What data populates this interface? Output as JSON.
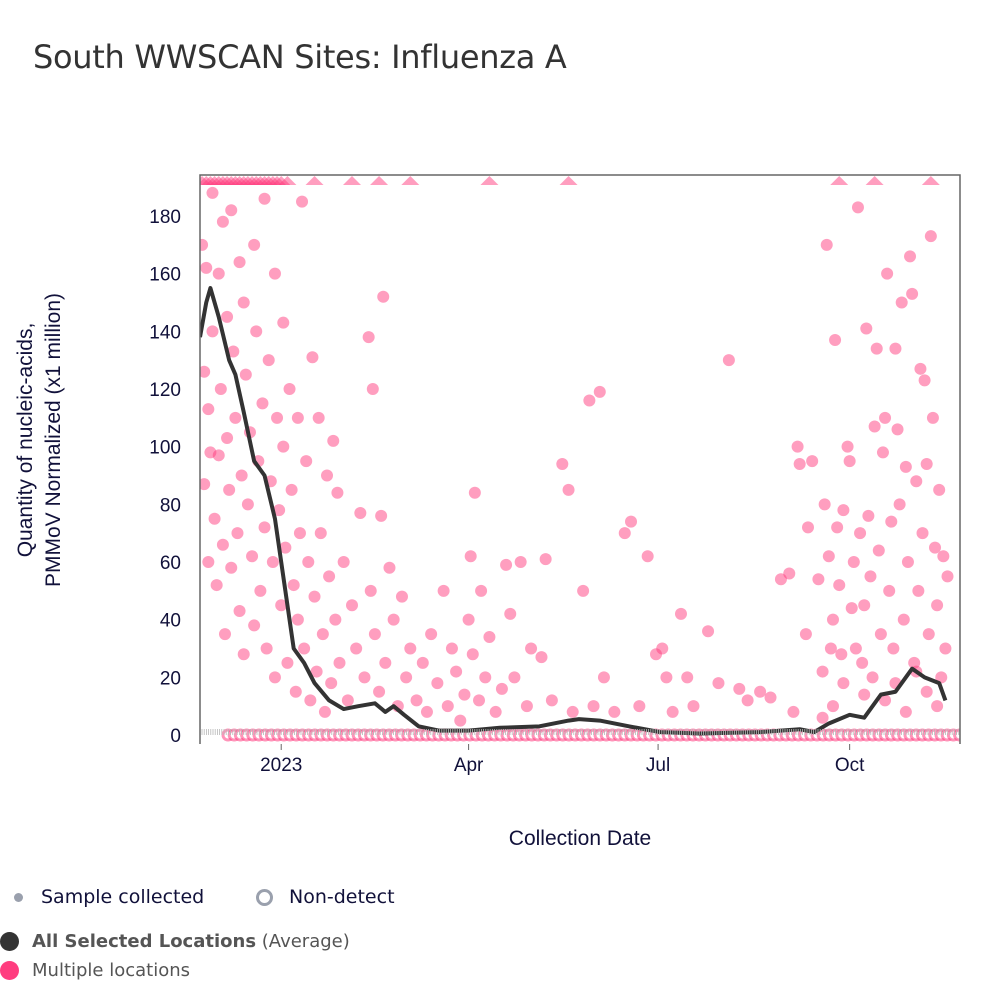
{
  "title": "South WWSCAN Sites: Influenza A",
  "legend": {
    "sample_collected": "Sample collected",
    "non_detect": "Non-detect",
    "average_bold": "All Selected Locations",
    "average_suffix": "(Average)",
    "multiple": "Multiple locations"
  },
  "colors": {
    "points": "#ff3d7f",
    "average": "#333333",
    "sample": "#9aa0ad"
  },
  "chart_data": {
    "type": "scatter",
    "title": "South WWSCAN Sites: Influenza A",
    "xlabel": "Collection Date",
    "ylabel_lines": [
      "Quantity of nucleic-acids,",
      "PMMoV Normalized (x1 million)"
    ],
    "x_unit": "days since 2023-01-01",
    "xlim": [
      -39,
      326
    ],
    "ylim": [
      0,
      194
    ],
    "x_ticks": [
      {
        "day": 0,
        "label": "2023"
      },
      {
        "day": 90,
        "label": "Apr"
      },
      {
        "day": 181,
        "label": "Jul"
      },
      {
        "day": 273,
        "label": "Oct"
      }
    ],
    "y_ticks": [
      0,
      20,
      40,
      60,
      80,
      100,
      120,
      140,
      160,
      180
    ],
    "average_series": {
      "name": "All Selected Locations (Average)",
      "points": [
        [
          -39,
          138
        ],
        [
          -36,
          150
        ],
        [
          -34,
          155
        ],
        [
          -30,
          145
        ],
        [
          -25,
          130
        ],
        [
          -22,
          125
        ],
        [
          -18,
          112
        ],
        [
          -13,
          95
        ],
        [
          -8,
          90
        ],
        [
          -3,
          75
        ],
        [
          1,
          55
        ],
        [
          6,
          30
        ],
        [
          11,
          25
        ],
        [
          16,
          18
        ],
        [
          23,
          12
        ],
        [
          30,
          9
        ],
        [
          37,
          10
        ],
        [
          45,
          11
        ],
        [
          50,
          8
        ],
        [
          54,
          10
        ],
        [
          59,
          7
        ],
        [
          66,
          3
        ],
        [
          76,
          1.5
        ],
        [
          90,
          1.5
        ],
        [
          105,
          2.5
        ],
        [
          124,
          3
        ],
        [
          138,
          5
        ],
        [
          143,
          5.5
        ],
        [
          153,
          5
        ],
        [
          167,
          3
        ],
        [
          182,
          1
        ],
        [
          201,
          0.5
        ],
        [
          230,
          1
        ],
        [
          249,
          2
        ],
        [
          256,
          1
        ],
        [
          263,
          4
        ],
        [
          273,
          7
        ],
        [
          280,
          6
        ],
        [
          288,
          14
        ],
        [
          295,
          15
        ],
        [
          300,
          20
        ],
        [
          303,
          23
        ],
        [
          309,
          20
        ],
        [
          316,
          18
        ],
        [
          319,
          12
        ]
      ]
    },
    "above_range_days": [
      -38,
      -36,
      -34,
      -32,
      -30,
      -28,
      -26,
      -24,
      -22,
      -20,
      -18,
      -16,
      -14,
      -12,
      -10,
      -8,
      -6,
      -4,
      -2,
      0,
      3,
      16,
      34,
      47,
      62,
      100,
      138,
      268,
      285,
      312
    ],
    "scatter_series": {
      "name": "Multiple locations",
      "points": [
        [
          -38,
          170
        ],
        [
          -37,
          126
        ],
        [
          -37,
          87
        ],
        [
          -36,
          162
        ],
        [
          -35,
          113
        ],
        [
          -35,
          60
        ],
        [
          -34,
          98
        ],
        [
          -33,
          188
        ],
        [
          -33,
          140
        ],
        [
          -32,
          75
        ],
        [
          -31,
          52
        ],
        [
          -30,
          160
        ],
        [
          -30,
          97
        ],
        [
          -29,
          120
        ],
        [
          -28,
          178
        ],
        [
          -28,
          66
        ],
        [
          -27,
          35
        ],
        [
          -26,
          145
        ],
        [
          -26,
          103
        ],
        [
          -25,
          85
        ],
        [
          -24,
          182
        ],
        [
          -24,
          58
        ],
        [
          -23,
          133
        ],
        [
          -22,
          110
        ],
        [
          -21,
          70
        ],
        [
          -20,
          164
        ],
        [
          -20,
          43
        ],
        [
          -19,
          90
        ],
        [
          -18,
          150
        ],
        [
          -18,
          28
        ],
        [
          -17,
          125
        ],
        [
          -16,
          80
        ],
        [
          -15,
          105
        ],
        [
          -14,
          62
        ],
        [
          -13,
          170
        ],
        [
          -13,
          38
        ],
        [
          -12,
          140
        ],
        [
          -11,
          95
        ],
        [
          -10,
          50
        ],
        [
          -9,
          115
        ],
        [
          -8,
          186
        ],
        [
          -8,
          72
        ],
        [
          -7,
          30
        ],
        [
          -6,
          130
        ],
        [
          -5,
          88
        ],
        [
          -4,
          60
        ],
        [
          -3,
          160
        ],
        [
          -3,
          20
        ],
        [
          -2,
          110
        ],
        [
          -1,
          78
        ],
        [
          0,
          45
        ],
        [
          1,
          143
        ],
        [
          1,
          100
        ],
        [
          2,
          65
        ],
        [
          3,
          25
        ],
        [
          4,
          120
        ],
        [
          5,
          85
        ],
        [
          6,
          52
        ],
        [
          7,
          15
        ],
        [
          8,
          110
        ],
        [
          8,
          40
        ],
        [
          9,
          70
        ],
        [
          10,
          185
        ],
        [
          11,
          30
        ],
        [
          12,
          95
        ],
        [
          13,
          60
        ],
        [
          14,
          12
        ],
        [
          15,
          131
        ],
        [
          16,
          48
        ],
        [
          17,
          22
        ],
        [
          18,
          110
        ],
        [
          19,
          70
        ],
        [
          20,
          35
        ],
        [
          21,
          8
        ],
        [
          22,
          90
        ],
        [
          23,
          55
        ],
        [
          24,
          18
        ],
        [
          25,
          102
        ],
        [
          26,
          40
        ],
        [
          27,
          84
        ],
        [
          28,
          25
        ],
        [
          30,
          60
        ],
        [
          32,
          12
        ],
        [
          34,
          45
        ],
        [
          36,
          30
        ],
        [
          38,
          77
        ],
        [
          40,
          20
        ],
        [
          42,
          138
        ],
        [
          43,
          50
        ],
        [
          44,
          120
        ],
        [
          45,
          35
        ],
        [
          47,
          15
        ],
        [
          48,
          76
        ],
        [
          49,
          152
        ],
        [
          50,
          25
        ],
        [
          52,
          58
        ],
        [
          54,
          40
        ],
        [
          56,
          10
        ],
        [
          58,
          48
        ],
        [
          60,
          20
        ],
        [
          62,
          30
        ],
        [
          65,
          12
        ],
        [
          68,
          25
        ],
        [
          70,
          8
        ],
        [
          72,
          35
        ],
        [
          75,
          18
        ],
        [
          78,
          50
        ],
        [
          80,
          10
        ],
        [
          82,
          30
        ],
        [
          84,
          22
        ],
        [
          86,
          5
        ],
        [
          88,
          14
        ],
        [
          90,
          40
        ],
        [
          91,
          62
        ],
        [
          92,
          28
        ],
        [
          93,
          84
        ],
        [
          95,
          12
        ],
        [
          96,
          50
        ],
        [
          98,
          20
        ],
        [
          100,
          34
        ],
        [
          103,
          8
        ],
        [
          106,
          16
        ],
        [
          108,
          59
        ],
        [
          110,
          42
        ],
        [
          112,
          20
        ],
        [
          115,
          60
        ],
        [
          118,
          10
        ],
        [
          120,
          30
        ],
        [
          125,
          27
        ],
        [
          127,
          61
        ],
        [
          130,
          12
        ],
        [
          135,
          94
        ],
        [
          138,
          85
        ],
        [
          140,
          8
        ],
        [
          145,
          50
        ],
        [
          148,
          116
        ],
        [
          150,
          10
        ],
        [
          153,
          119
        ],
        [
          155,
          20
        ],
        [
          160,
          8
        ],
        [
          165,
          70
        ],
        [
          168,
          74
        ],
        [
          172,
          10
        ],
        [
          176,
          62
        ],
        [
          180,
          28
        ],
        [
          183,
          30
        ],
        [
          185,
          20
        ],
        [
          188,
          8
        ],
        [
          192,
          42
        ],
        [
          195,
          20
        ],
        [
          198,
          10
        ],
        [
          205,
          36
        ],
        [
          210,
          18
        ],
        [
          215,
          130
        ],
        [
          220,
          16
        ],
        [
          224,
          12
        ],
        [
          230,
          15
        ],
        [
          235,
          13
        ],
        [
          240,
          54
        ],
        [
          244,
          56
        ],
        [
          246,
          8
        ],
        [
          248,
          100
        ],
        [
          249,
          94
        ],
        [
          252,
          35
        ],
        [
          253,
          72
        ],
        [
          255,
          95
        ],
        [
          258,
          54
        ],
        [
          260,
          22
        ],
        [
          261,
          80
        ],
        [
          262,
          170
        ],
        [
          263,
          62
        ],
        [
          264,
          30
        ],
        [
          265,
          40
        ],
        [
          266,
          137
        ],
        [
          267,
          72
        ],
        [
          268,
          52
        ],
        [
          269,
          28
        ],
        [
          270,
          78
        ],
        [
          272,
          100
        ],
        [
          273,
          95
        ],
        [
          274,
          44
        ],
        [
          275,
          60
        ],
        [
          276,
          30
        ],
        [
          277,
          183
        ],
        [
          278,
          70
        ],
        [
          279,
          25
        ],
        [
          280,
          45
        ],
        [
          281,
          141
        ],
        [
          282,
          76
        ],
        [
          283,
          55
        ],
        [
          284,
          20
        ],
        [
          285,
          107
        ],
        [
          286,
          134
        ],
        [
          287,
          64
        ],
        [
          288,
          35
        ],
        [
          289,
          98
        ],
        [
          290,
          110
        ],
        [
          291,
          160
        ],
        [
          292,
          50
        ],
        [
          293,
          74
        ],
        [
          294,
          30
        ],
        [
          295,
          134
        ],
        [
          296,
          106
        ],
        [
          297,
          80
        ],
        [
          298,
          150
        ],
        [
          299,
          40
        ],
        [
          300,
          93
        ],
        [
          301,
          60
        ],
        [
          302,
          166
        ],
        [
          303,
          153
        ],
        [
          304,
          25
        ],
        [
          305,
          88
        ],
        [
          306,
          50
        ],
        [
          307,
          127
        ],
        [
          308,
          70
        ],
        [
          309,
          123
        ],
        [
          310,
          94
        ],
        [
          311,
          35
        ],
        [
          312,
          173
        ],
        [
          313,
          110
        ],
        [
          314,
          65
        ],
        [
          315,
          45
        ],
        [
          316,
          85
        ],
        [
          317,
          20
        ],
        [
          318,
          62
        ],
        [
          319,
          30
        ],
        [
          320,
          55
        ],
        [
          290,
          12
        ],
        [
          295,
          18
        ],
        [
          300,
          8
        ],
        [
          305,
          22
        ],
        [
          310,
          15
        ],
        [
          315,
          10
        ],
        [
          280,
          14
        ],
        [
          270,
          18
        ],
        [
          265,
          10
        ],
        [
          260,
          6
        ]
      ]
    }
  }
}
